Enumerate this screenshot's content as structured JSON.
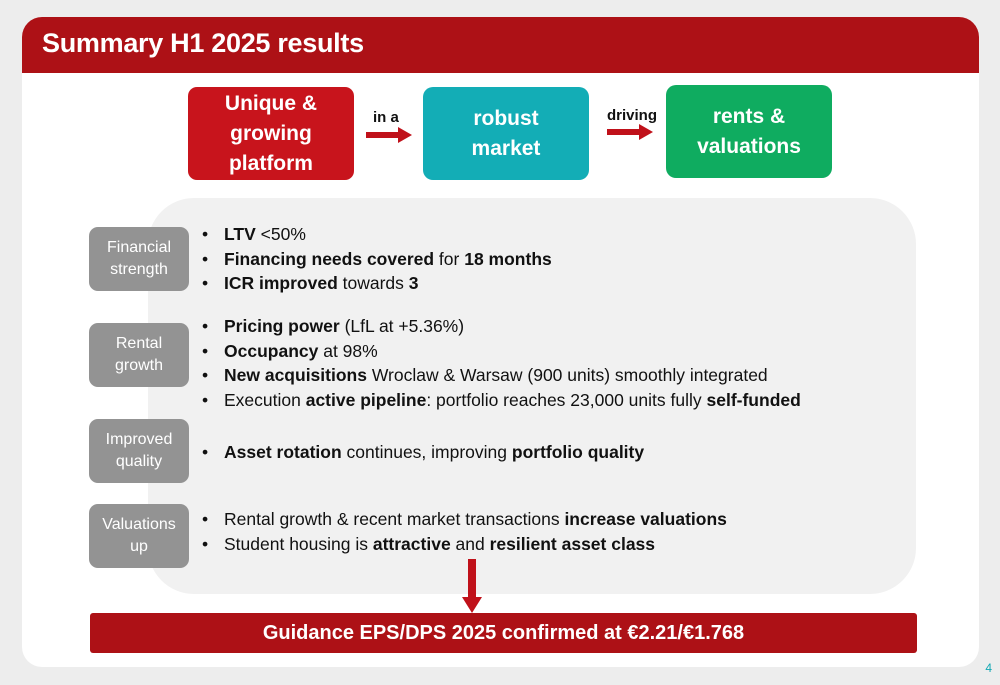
{
  "header": {
    "title": "Summary H1 2025 results"
  },
  "flow": {
    "box1": {
      "lines": [
        "Unique &",
        "growing",
        "platform"
      ],
      "color": "#c8141c"
    },
    "connector1": "in a",
    "box2": {
      "lines": [
        "robust",
        "market"
      ],
      "color": "#13adb6"
    },
    "connector2": "driving",
    "box3": {
      "lines": [
        "rents &",
        "valuations"
      ],
      "color": "#0fac60"
    },
    "arrow_color": "#c0111a"
  },
  "sections": [
    {
      "tag": [
        "Financial",
        "strength"
      ],
      "bullets": [
        [
          {
            "t": "LTV",
            "b": true
          },
          {
            "t": " <50%",
            "b": false
          }
        ],
        [
          {
            "t": "Financing needs covered",
            "b": true
          },
          {
            "t": " for ",
            "b": false
          },
          {
            "t": "18 months",
            "b": true
          }
        ],
        [
          {
            "t": "ICR improved",
            "b": true
          },
          {
            "t": " towards ",
            "b": false
          },
          {
            "t": "3",
            "b": true
          }
        ]
      ]
    },
    {
      "tag": [
        "Rental",
        "growth"
      ],
      "bullets": [
        [
          {
            "t": "Pricing power",
            "b": true
          },
          {
            "t": " (LfL at +5.36%)",
            "b": false
          }
        ],
        [
          {
            "t": "Occupancy",
            "b": true
          },
          {
            "t": " at 98%",
            "b": false
          }
        ],
        [
          {
            "t": "New acquisitions",
            "b": true
          },
          {
            "t": " Wroclaw & Warsaw (900 units) smoothly integrated",
            "b": false
          }
        ],
        [
          {
            "t": "Execution ",
            "b": false
          },
          {
            "t": "active pipeline",
            "b": true
          },
          {
            "t": ": portfolio reaches 23,000 units fully ",
            "b": false
          },
          {
            "t": "self-funded",
            "b": true
          }
        ]
      ]
    },
    {
      "tag": [
        "Improved",
        "quality"
      ],
      "bullets": [
        [
          {
            "t": "Asset rotation",
            "b": true
          },
          {
            "t": " continues, improving ",
            "b": false
          },
          {
            "t": "portfolio quality",
            "b": true
          }
        ]
      ]
    },
    {
      "tag": [
        "Valuations",
        "up"
      ],
      "bullets": [
        [
          {
            "t": "Rental growth & recent market transactions ",
            "b": false
          },
          {
            "t": "increase valuations",
            "b": true
          }
        ],
        [
          {
            "t": "Student housing is ",
            "b": false
          },
          {
            "t": "attractive",
            "b": true
          },
          {
            "t": " and ",
            "b": false
          },
          {
            "t": "resilient asset class",
            "b": true
          }
        ]
      ]
    }
  ],
  "guidance": "Guidance EPS/DPS 2025 confirmed at €2.21/€1.768",
  "page_number": "4"
}
